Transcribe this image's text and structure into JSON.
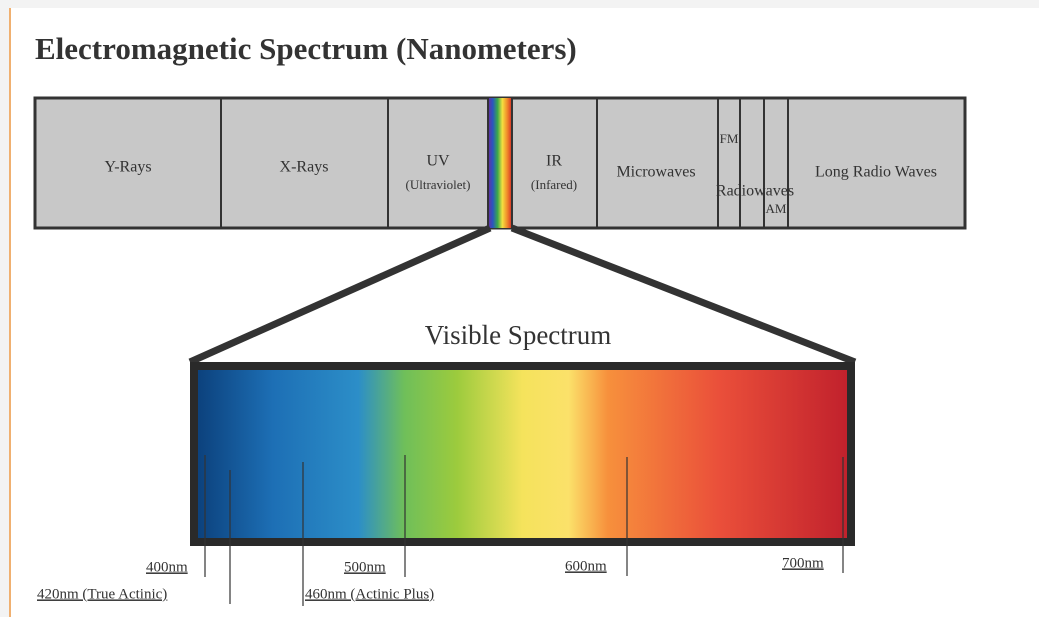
{
  "title": "Electromagnetic Spectrum (Nanometers)",
  "bands": {
    "gamma": "Y-Rays",
    "xray": "X-Rays",
    "uv": {
      "label": "UV",
      "sub": "(Ultraviolet)"
    },
    "ir": {
      "label": "IR",
      "sub": "(Infared)"
    },
    "microwaves": "Microwaves",
    "fm": "FM",
    "radiowaves": "Radiowaves",
    "am": "AM",
    "long_radio": "Long Radio Waves"
  },
  "visible": {
    "title": "Visible Spectrum",
    "markers": [
      "400nm",
      "420nm (True Actinic)",
      "460nm (Actinic Plus)",
      "500nm",
      "600nm",
      "700nm"
    ]
  }
}
